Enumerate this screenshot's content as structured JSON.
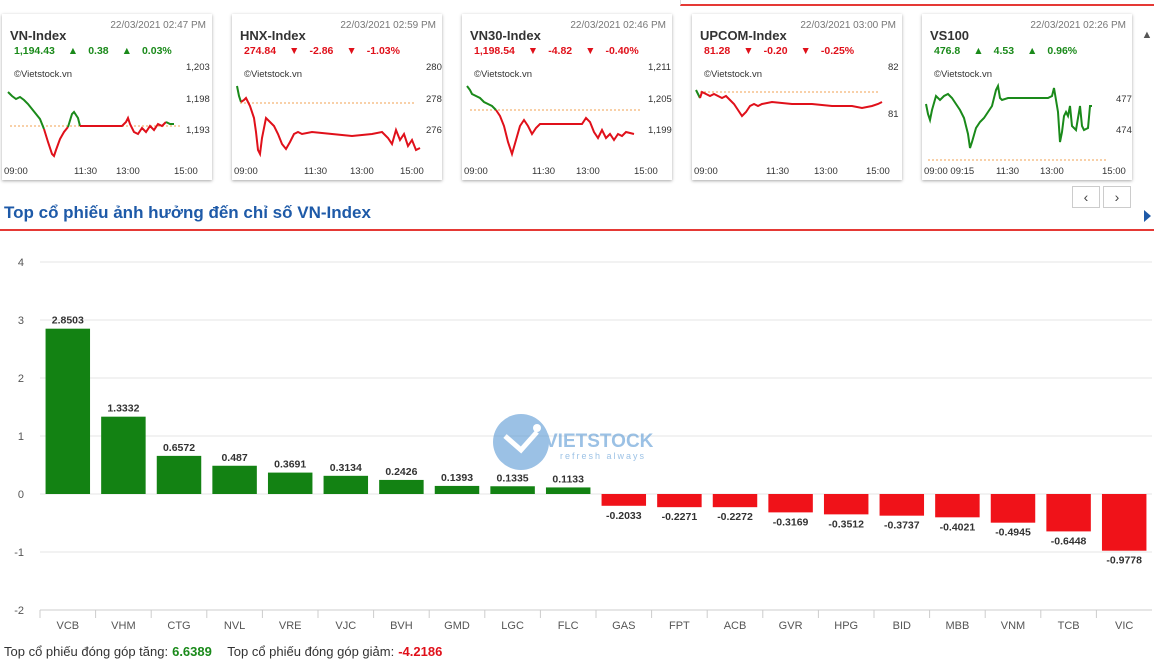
{
  "cards": [
    {
      "name": "VN-Index",
      "time": "22/03/2021 02:47 PM",
      "value": "1,194.43",
      "change": "0.38",
      "pct": "0.03%",
      "dir": "up",
      "brand": "©Vietstock.vn",
      "yticks": [
        "1,203",
        "1,198",
        "1,193"
      ],
      "xticks": [
        "09:00",
        "11:30",
        "13:00",
        "15:00"
      ]
    },
    {
      "name": "HNX-Index",
      "time": "22/03/2021 02:59 PM",
      "value": "274.84",
      "change": "-2.86",
      "pct": "-1.03%",
      "dir": "down",
      "brand": "©Vietstock.vn",
      "yticks": [
        "280",
        "278",
        "276"
      ],
      "xticks": [
        "09:00",
        "11:30",
        "13:00",
        "15:00"
      ]
    },
    {
      "name": "VN30-Index",
      "time": "22/03/2021 02:46 PM",
      "value": "1,198.54",
      "change": "-4.82",
      "pct": "-0.40%",
      "dir": "down",
      "brand": "©Vietstock.vn",
      "yticks": [
        "1,211",
        "1,205",
        "1,199"
      ],
      "xticks": [
        "09:00",
        "11:30",
        "13:00",
        "15:00"
      ]
    },
    {
      "name": "UPCOM-Index",
      "time": "22/03/2021 03:00 PM",
      "value": "81.28",
      "change": "-0.20",
      "pct": "-0.25%",
      "dir": "down",
      "brand": "©Vietstock.vn",
      "yticks": [
        "82",
        "81"
      ],
      "xticks": [
        "09:00",
        "11:30",
        "13:00",
        "15:00"
      ]
    },
    {
      "name": "VS100",
      "time": "22/03/2021 02:26 PM",
      "value": "476.8",
      "change": "4.53",
      "pct": "0.96%",
      "dir": "up",
      "brand": "©Vietstock.vn",
      "yticks": [
        "477",
        "474"
      ],
      "xticks": [
        "09:00 09:15",
        "11:30",
        "13:00",
        "15:00"
      ]
    }
  ],
  "nav": {
    "prev": "‹",
    "next": "›"
  },
  "section": {
    "title": "Top cổ phiếu ảnh hưởng đến chỉ số VN-Index"
  },
  "watermark": {
    "text": "VIETSTOCK",
    "tagline": "refresh always"
  },
  "chart_data": {
    "type": "bar",
    "categories": [
      "VCB",
      "VHM",
      "CTG",
      "NVL",
      "VRE",
      "VJC",
      "BVH",
      "GMD",
      "LGC",
      "FLC",
      "GAS",
      "FPT",
      "ACB",
      "GVR",
      "HPG",
      "BID",
      "MBB",
      "VNM",
      "TCB",
      "VIC"
    ],
    "values": [
      2.8503,
      1.3332,
      0.6572,
      0.487,
      0.3691,
      0.3134,
      0.2426,
      0.1393,
      0.1335,
      0.1133,
      -0.2033,
      -0.2271,
      -0.2272,
      -0.3169,
      -0.3512,
      -0.3737,
      -0.4021,
      -0.4945,
      -0.6448,
      -0.9778
    ],
    "labels": [
      "2.8503",
      "1.3332",
      "0.6572",
      "0.487",
      "0.3691",
      "0.3134",
      "0.2426",
      "0.1393",
      "0.1335",
      "0.1133",
      "-0.2033",
      "-0.2271",
      "-0.2272",
      "-0.3169",
      "-0.3512",
      "-0.3737",
      "-0.4021",
      "-0.4945",
      "-0.6448",
      "-0.9778"
    ],
    "yticks": [
      "4",
      "3",
      "2",
      "1",
      "0",
      "-1",
      "-2"
    ],
    "ylim": [
      -2,
      4
    ],
    "colors": {
      "positive": "#138213",
      "negative": "#f01219"
    }
  },
  "footer": {
    "up_label": "Top cổ phiếu đóng góp tăng:",
    "up_value": "6.6389",
    "down_label": "Top cổ phiếu đóng góp giảm:",
    "down_value": "-4.2186"
  }
}
